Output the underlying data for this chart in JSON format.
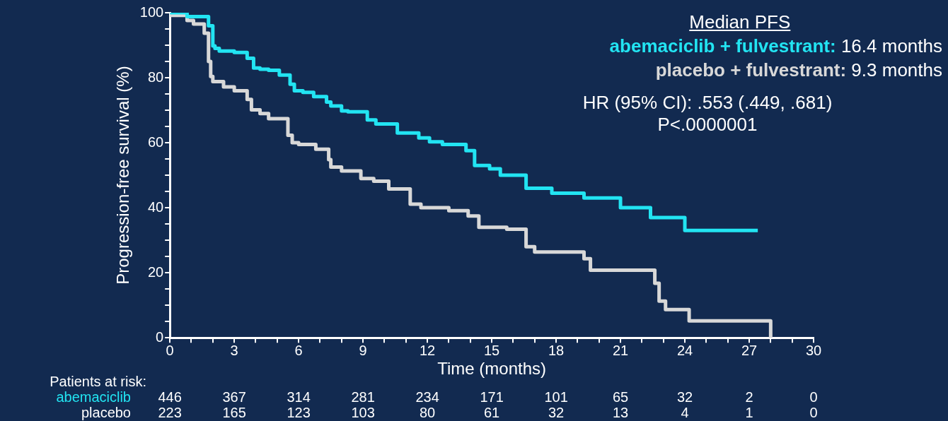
{
  "chart_data": {
    "type": "step",
    "xlabel": "Time (months)",
    "ylabel": "Progression-free survival (%)",
    "xlim": [
      0,
      30
    ],
    "ylim": [
      0,
      100
    ],
    "xticks": [
      0,
      {
        "value": 1,
        "label": null
      },
      {
        "value": 2,
        "label": null
      },
      3,
      {
        "value": 4,
        "label": null
      },
      {
        "value": 5,
        "label": null
      },
      6,
      {
        "value": 7,
        "label": null
      },
      {
        "value": 8,
        "label": null
      },
      9,
      {
        "value": 10,
        "label": null
      },
      {
        "value": 11,
        "label": null
      },
      12,
      {
        "value": 13,
        "label": null
      },
      {
        "value": 14,
        "label": null
      },
      15,
      {
        "value": 16,
        "label": null
      },
      {
        "value": 17,
        "label": null
      },
      18,
      {
        "value": 19,
        "label": null
      },
      {
        "value": 20,
        "label": null
      },
      21,
      {
        "value": 22,
        "label": null
      },
      {
        "value": 23,
        "label": null
      },
      24,
      {
        "value": 25,
        "label": null
      },
      {
        "value": 26,
        "label": null
      },
      27,
      {
        "value": 28,
        "label": null
      },
      {
        "value": 29,
        "label": null
      },
      30
    ],
    "yticks": [
      0,
      {
        "value": 5,
        "label": null
      },
      {
        "value": 10,
        "label": null
      },
      {
        "value": 15,
        "label": null
      },
      20,
      {
        "value": 25,
        "label": null
      },
      {
        "value": 30,
        "label": null
      },
      {
        "value": 35,
        "label": null
      },
      40,
      {
        "value": 45,
        "label": null
      },
      {
        "value": 50,
        "label": null
      },
      {
        "value": 55,
        "label": null
      },
      60,
      {
        "value": 65,
        "label": null
      },
      {
        "value": 70,
        "label": null
      },
      {
        "value": 75,
        "label": null
      },
      80,
      {
        "value": 85,
        "label": null
      },
      {
        "value": 90,
        "label": null
      },
      {
        "value": 95,
        "label": null
      },
      100
    ],
    "series": [
      {
        "name": "abemaciclib + fulvestrant:",
        "color": "#22e4f2",
        "x": [
          0,
          0.8,
          1.8,
          2.0,
          2.1,
          2.3,
          3.0,
          3.6,
          3.9,
          4.2,
          4.6,
          5.1,
          5.6,
          5.8,
          6.2,
          6.7,
          7.3,
          7.5,
          8.0,
          8.3,
          9.2,
          9.6,
          10.6,
          11.6,
          12.1,
          12.7,
          13.8,
          14.2,
          14.9,
          15.4,
          16.6,
          17.8,
          19.3,
          21.0,
          22.4,
          24.0,
          26.0,
          27.4
        ],
        "values": [
          100,
          100,
          98.8,
          96,
          89.8,
          89,
          88.2,
          87.8,
          86,
          83,
          82.6,
          82.3,
          80.8,
          78,
          76,
          75.5,
          74.2,
          72.5,
          71.3,
          69.8,
          69.5,
          67,
          65.8,
          63,
          61.5,
          60.3,
          59.5,
          57.6,
          53,
          52,
          50,
          46,
          44.5,
          43,
          40,
          37,
          33,
          33
        ]
      },
      {
        "name": "placebo + fulvestrant:",
        "color": "#d8d8d8",
        "x": [
          0,
          0.8,
          1.1,
          1.6,
          1.8,
          1.9,
          2.0,
          2.5,
          3.0,
          3.6,
          3.8,
          4.2,
          4.6,
          5.5,
          5.7,
          6.0,
          6.8,
          7.4,
          7.5,
          8.0,
          8.9,
          9.5,
          10.2,
          11.2,
          11.7,
          13.0,
          13.9,
          14.4,
          15.7,
          16.6,
          17.0,
          19.3,
          19.6,
          22.6,
          22.8,
          23.1,
          24.2,
          24.8,
          28.0,
          28.0
        ],
        "values": [
          100,
          99.2,
          97.6,
          96.5,
          93.7,
          85,
          80.4,
          78.8,
          77.2,
          76,
          73.3,
          70.1,
          69,
          67.4,
          62.3,
          60,
          59.5,
          58,
          54.8,
          52.5,
          51.3,
          49,
          48.2,
          45.8,
          41.1,
          40,
          39.1,
          37.5,
          34,
          33.4,
          28,
          26.4,
          24.3,
          20.8,
          16.8,
          11.3,
          8.7,
          5.2,
          5.2,
          0
        ]
      }
    ],
    "annotations": [
      "Median PFS",
      "16.4 months",
      "9.3 months",
      "HR (95% CI): .553 (.449, .681)",
      "P<.0000001",
      "Patients at risk:",
      "abemaciclib",
      "446",
      "367",
      "314",
      "281",
      "234",
      "171",
      "101",
      "65",
      "32",
      "2",
      "0",
      "placebo",
      "223",
      "165",
      "123",
      "103",
      "80",
      "61",
      "32",
      "13",
      "4",
      "1",
      "0"
    ]
  }
}
